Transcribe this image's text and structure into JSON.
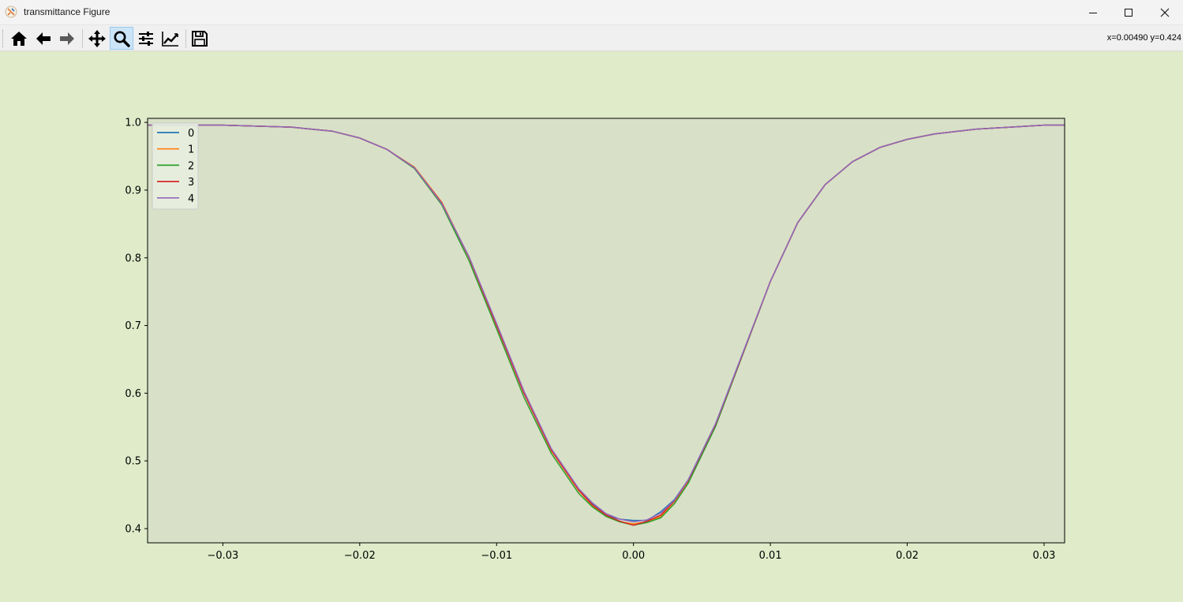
{
  "window": {
    "title": "transmittance Figure"
  },
  "toolbar": {
    "buttons": [
      {
        "name": "home-icon",
        "tooltip": "Home"
      },
      {
        "name": "back-icon",
        "tooltip": "Back"
      },
      {
        "name": "forward-icon",
        "tooltip": "Forward"
      },
      {
        "name": "pan-icon",
        "tooltip": "Pan"
      },
      {
        "name": "zoom-icon",
        "tooltip": "Zoom",
        "active": true
      },
      {
        "name": "subplots-icon",
        "tooltip": "Subplots"
      },
      {
        "name": "customize-icon",
        "tooltip": "Customize"
      },
      {
        "name": "save-icon",
        "tooltip": "Save"
      }
    ],
    "coords": "x=0.00490 y=0.424"
  },
  "colors": {
    "figure_bg": "#dfebc9",
    "axes_bg": "#d8e0c8"
  },
  "chart_data": {
    "type": "line",
    "title": "",
    "xlabel": "",
    "ylabel": "",
    "xlim": [
      -0.0355,
      0.0315
    ],
    "ylim": [
      0.379,
      1.006
    ],
    "xticks": [
      -0.03,
      -0.02,
      -0.01,
      0.0,
      0.01,
      0.02,
      0.03
    ],
    "xtick_labels": [
      "−0.03",
      "−0.02",
      "−0.01",
      "0.00",
      "0.01",
      "0.02",
      "0.03"
    ],
    "yticks": [
      0.4,
      0.5,
      0.6,
      0.7,
      0.8,
      0.9,
      1.0
    ],
    "ytick_labels": [
      "0.4",
      "0.5",
      "0.6",
      "0.7",
      "0.8",
      "0.9",
      "1.0"
    ],
    "grid": false,
    "legend_position": "upper left",
    "x": [
      -0.0355,
      -0.03,
      -0.025,
      -0.022,
      -0.02,
      -0.018,
      -0.016,
      -0.014,
      -0.012,
      -0.01,
      -0.008,
      -0.006,
      -0.004,
      -0.003,
      -0.002,
      -0.001,
      0.0,
      0.001,
      0.002,
      0.003,
      0.004,
      0.006,
      0.008,
      0.01,
      0.012,
      0.014,
      0.016,
      0.018,
      0.02,
      0.022,
      0.025,
      0.03,
      0.0315
    ],
    "series": [
      {
        "name": "0",
        "color": "#1f77b4",
        "values": [
          0.996,
          0.996,
          0.993,
          0.987,
          0.977,
          0.96,
          0.932,
          0.88,
          0.8,
          0.702,
          0.602,
          0.517,
          0.458,
          0.437,
          0.42,
          0.414,
          0.412,
          0.412,
          0.425,
          0.443,
          0.472,
          0.555,
          0.66,
          0.765,
          0.852,
          0.908,
          0.942,
          0.963,
          0.975,
          0.983,
          0.99,
          0.996,
          0.996
        ]
      },
      {
        "name": "1",
        "color": "#ff7f0e",
        "values": [
          0.996,
          0.996,
          0.993,
          0.987,
          0.977,
          0.96,
          0.934,
          0.882,
          0.8,
          0.7,
          0.6,
          0.515,
          0.456,
          0.434,
          0.418,
          0.41,
          0.407,
          0.41,
          0.418,
          0.44,
          0.47,
          0.553,
          0.659,
          0.765,
          0.852,
          0.908,
          0.942,
          0.963,
          0.975,
          0.983,
          0.99,
          0.996,
          0.996
        ]
      },
      {
        "name": "2",
        "color": "#2ca02c",
        "values": [
          0.996,
          0.996,
          0.993,
          0.987,
          0.977,
          0.96,
          0.932,
          0.878,
          0.795,
          0.695,
          0.594,
          0.511,
          0.452,
          0.432,
          0.418,
          0.41,
          0.405,
          0.409,
          0.416,
          0.437,
          0.467,
          0.551,
          0.658,
          0.765,
          0.852,
          0.908,
          0.942,
          0.963,
          0.975,
          0.983,
          0.99,
          0.996,
          0.996
        ]
      },
      {
        "name": "3",
        "color": "#d62728",
        "values": [
          0.996,
          0.996,
          0.993,
          0.987,
          0.977,
          0.96,
          0.933,
          0.881,
          0.8,
          0.7,
          0.6,
          0.516,
          0.457,
          0.435,
          0.42,
          0.411,
          0.405,
          0.411,
          0.42,
          0.441,
          0.471,
          0.554,
          0.659,
          0.765,
          0.852,
          0.908,
          0.942,
          0.963,
          0.975,
          0.983,
          0.99,
          0.996,
          0.996
        ]
      },
      {
        "name": "4",
        "color": "#9467bd",
        "values": [
          0.996,
          0.996,
          0.993,
          0.987,
          0.977,
          0.96,
          0.933,
          0.88,
          0.801,
          0.703,
          0.603,
          0.518,
          0.459,
          0.438,
          0.422,
          0.414,
          0.41,
          0.413,
          0.423,
          0.442,
          0.472,
          0.555,
          0.66,
          0.765,
          0.852,
          0.908,
          0.942,
          0.963,
          0.975,
          0.983,
          0.99,
          0.996,
          0.996
        ]
      }
    ]
  }
}
